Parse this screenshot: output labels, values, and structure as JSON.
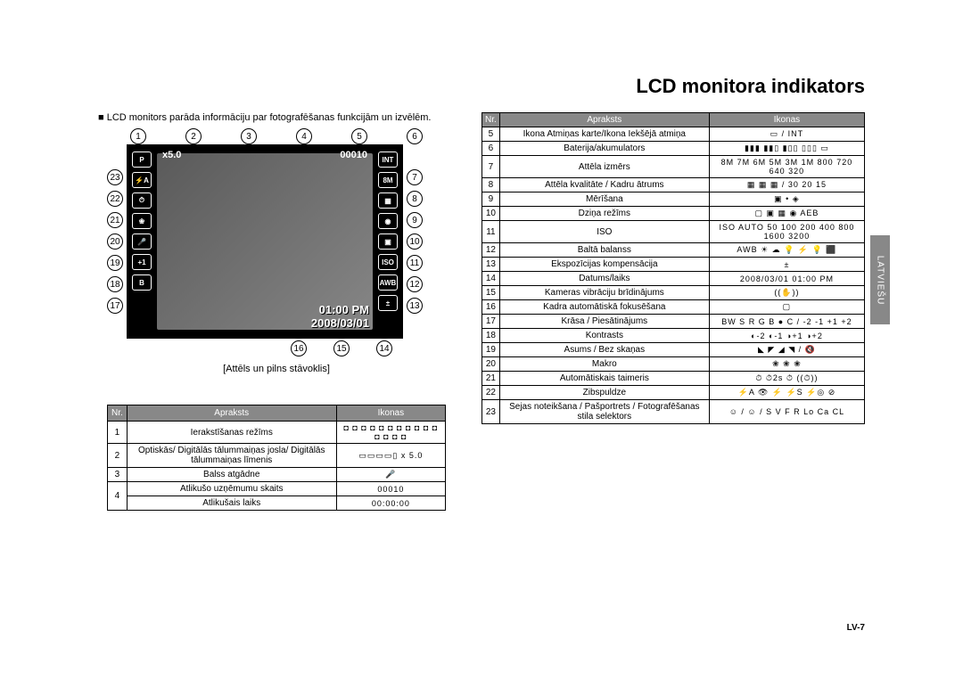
{
  "title": "LCD monitora indikators",
  "intro": "■ LCD monitors parāda informāciju par fotografēšanas funkcijām un izvēlēm.",
  "caption": "[Attēls un pilns stāvoklis]",
  "footer": "LV-7",
  "sidetab": "LATVIEŠU",
  "lcd": {
    "zoom": "x5.0",
    "counter": "00010",
    "time": "01:00 PM",
    "date": "2008/03/01",
    "mp": "8M",
    "iso": "ISO",
    "iso_auto": "AUTO",
    "awb": "AWB",
    "left_icons": [
      "P",
      "⚡A",
      "⏱",
      "❀",
      "🎤",
      "+1",
      "B"
    ],
    "right_icons": [
      "INT",
      "8M",
      "▦",
      "◉",
      "▣",
      "ISO",
      "AWB",
      "±"
    ]
  },
  "callouts_top": [
    "1",
    "2",
    "3",
    "4",
    "5",
    "6"
  ],
  "callouts_left": [
    "23",
    "22",
    "21",
    "20",
    "19",
    "18",
    "17"
  ],
  "callouts_right": [
    "7",
    "8",
    "9",
    "10",
    "11",
    "12",
    "13"
  ],
  "callouts_bottom": [
    "16",
    "15",
    "14"
  ],
  "table1": {
    "headers": [
      "Nr.",
      "Apraksts",
      "Ikonas"
    ],
    "rows": [
      [
        "1",
        "Ierakstīšanas režīms",
        "◘ ◘ ◘ ◘ ◘ ◘ ◘ ◘ ◘ ◘ ◘ ◘ ◘ ◘ ◘"
      ],
      [
        "2",
        "Optiskās/ Digitālās tālummaiņas josla/ Digitālās tālummaiņas līmenis",
        "▭▭▭▭▯  x 5.0"
      ],
      [
        "3",
        "Balss atgādne",
        "🎤"
      ],
      [
        "4",
        "Atlikušo uzņēmumu skaits",
        "00010"
      ],
      [
        "4b",
        "Atlikušais laiks",
        "00:00:00"
      ]
    ]
  },
  "table2": {
    "headers": [
      "Nr.",
      "Apraksts",
      "Ikonas"
    ],
    "rows": [
      [
        "5",
        "Ikona Atmiņas karte/Ikona Iekšējā atmiņa",
        "▭ / INT"
      ],
      [
        "6",
        "Baterija/akumulators",
        "▮▮▮ ▮▮▯ ▮▯▯ ▯▯▯ ▭"
      ],
      [
        "7",
        "Attēla izmērs",
        "8M 7M 6M 5M 3M 1M 800 720 640 320"
      ],
      [
        "8",
        "Attēla kvalitāte / Kadru ātrums",
        "▦ ▦ ▦ / 30 20 15"
      ],
      [
        "9",
        "Mērīšana",
        "▣ • ◈"
      ],
      [
        "10",
        "Dziņa režīms",
        "▢ ▣ ▦ ◉ AEB"
      ],
      [
        "11",
        "ISO",
        "ISO AUTO 50 100 200 400 800 1600 3200"
      ],
      [
        "12",
        "Baltā balanss",
        "AWB ☀ ☁ 💡 ⚡ 💡 ⬛"
      ],
      [
        "13",
        "Ekspozīcijas kompensācija",
        "±"
      ],
      [
        "14",
        "Datums/laiks",
        "2008/03/01  01:00 PM"
      ],
      [
        "15",
        "Kameras vibrāciju brīdinājums",
        "((✋))"
      ],
      [
        "16",
        "Kadra automātiskā fokusēšana",
        "▢"
      ],
      [
        "17",
        "Krāsa / Piesātinājums",
        "BW S R G B ● C / -2 -1 +1 +2"
      ],
      [
        "18",
        "Kontrasts",
        "◐-2 ◐-1 ◑+1 ◑+2"
      ],
      [
        "19",
        "Asums / Bez skaņas",
        "◣ ◤ ◢ ◥ / 🔇"
      ],
      [
        "20",
        "Makro",
        "❀ ❀ ❀"
      ],
      [
        "21",
        "Automātiskais taimeris",
        "⏱ ⏱2s ⏱ ((⏱))"
      ],
      [
        "22",
        "Zibspuldze",
        "⚡A 👁 ⚡ ⚡S ⚡◎ ⊘"
      ],
      [
        "23",
        "Sejas noteikšana / Pašportrets / Fotografēšanas stila selektors",
        "☺ / ☺ / S V F R Lo Ca CL"
      ]
    ]
  }
}
